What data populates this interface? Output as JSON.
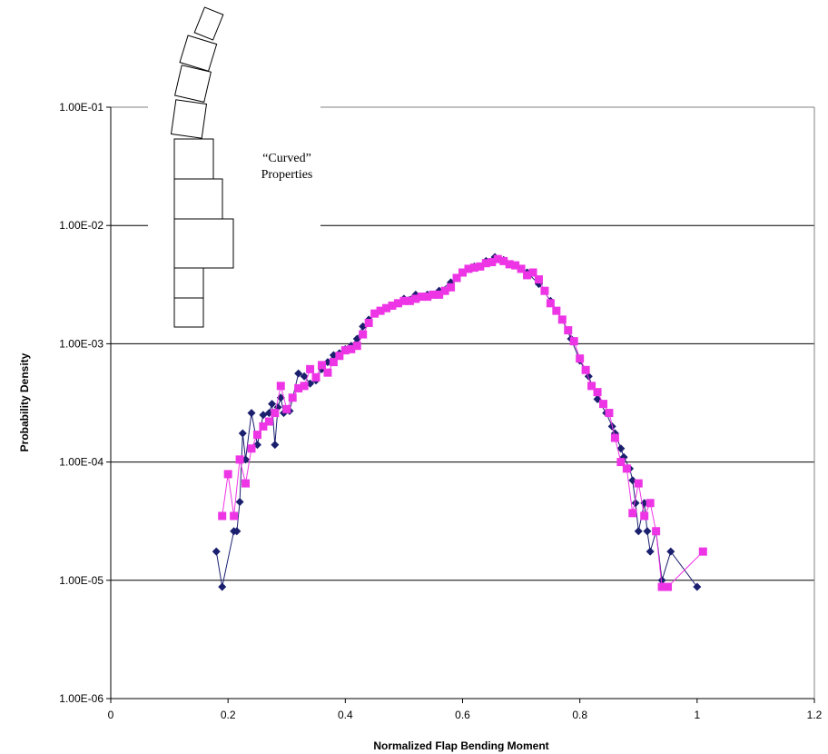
{
  "chart_data": {
    "type": "scatter",
    "title": "",
    "xlabel": "Normalized Flap Bending Moment",
    "ylabel": "Probability Density",
    "xlim": [
      0,
      1.2
    ],
    "ylim": [
      1e-06,
      0.1
    ],
    "yscale": "log",
    "grid": "horizontal major gridlines",
    "legend": "none",
    "x_ticks": [
      "0",
      "0.2",
      "0.4",
      "0.6",
      "0.8",
      "1",
      "1.2"
    ],
    "y_ticks": [
      "1.00E-06",
      "1.00E-05",
      "1.00E-04",
      "1.00E-03",
      "1.00E-02",
      "1.00E-01"
    ],
    "annotation": {
      "line1": "“Curved”",
      "line2": "Properties"
    },
    "series": [
      {
        "color": "#1a1f6e",
        "marker": "diamond",
        "points": [
          [
            0.18,
            1.75e-05
          ],
          [
            0.19,
            8.8e-06
          ],
          [
            0.21,
            2.6e-05
          ],
          [
            0.215,
            2.6e-05
          ],
          [
            0.22,
            4.6e-05
          ],
          [
            0.225,
            0.000175
          ],
          [
            0.23,
            0.000105
          ],
          [
            0.24,
            0.00026
          ],
          [
            0.25,
            0.00014
          ],
          [
            0.26,
            0.00025
          ],
          [
            0.27,
            0.00026
          ],
          [
            0.275,
            0.00031
          ],
          [
            0.28,
            0.00014
          ],
          [
            0.285,
            0.00029
          ],
          [
            0.29,
            0.00035
          ],
          [
            0.295,
            0.00026
          ],
          [
            0.305,
            0.00027
          ],
          [
            0.32,
            0.00056
          ],
          [
            0.33,
            0.00053
          ],
          [
            0.34,
            0.00046
          ],
          [
            0.35,
            0.00049
          ],
          [
            0.36,
            0.00061
          ],
          [
            0.37,
            0.0007
          ],
          [
            0.38,
            0.0008
          ],
          [
            0.39,
            0.00083
          ],
          [
            0.4,
            0.0009
          ],
          [
            0.41,
            0.00096
          ],
          [
            0.42,
            0.0011
          ],
          [
            0.43,
            0.0014
          ],
          [
            0.44,
            0.0016
          ],
          [
            0.46,
            0.0019
          ],
          [
            0.48,
            0.0021
          ],
          [
            0.5,
            0.0024
          ],
          [
            0.52,
            0.0026
          ],
          [
            0.54,
            0.0026
          ],
          [
            0.56,
            0.0028
          ],
          [
            0.58,
            0.0033
          ],
          [
            0.6,
            0.004
          ],
          [
            0.62,
            0.0045
          ],
          [
            0.64,
            0.005
          ],
          [
            0.655,
            0.0054
          ],
          [
            0.67,
            0.0051
          ],
          [
            0.69,
            0.0046
          ],
          [
            0.71,
            0.004
          ],
          [
            0.73,
            0.0032
          ],
          [
            0.75,
            0.0023
          ],
          [
            0.77,
            0.0016
          ],
          [
            0.785,
            0.0011
          ],
          [
            0.8,
            0.00072
          ],
          [
            0.815,
            0.00053
          ],
          [
            0.83,
            0.00034
          ],
          [
            0.845,
            0.00026
          ],
          [
            0.855,
            0.0002
          ],
          [
            0.86,
            0.000175
          ],
          [
            0.87,
            0.00013
          ],
          [
            0.875,
            0.00011
          ],
          [
            0.885,
            8.8e-05
          ],
          [
            0.89,
            7e-05
          ],
          [
            0.895,
            4.5e-05
          ],
          [
            0.9,
            2.6e-05
          ],
          [
            0.91,
            4.5e-05
          ],
          [
            0.915,
            2.6e-05
          ],
          [
            0.92,
            1.75e-05
          ],
          [
            0.93,
            2.6e-05
          ],
          [
            0.94,
            1e-05
          ],
          [
            0.955,
            1.75e-05
          ],
          [
            1.0,
            8.8e-06
          ]
        ]
      },
      {
        "color": "#ee35e6",
        "marker": "square",
        "points": [
          [
            0.19,
            3.5e-05
          ],
          [
            0.2,
            7.9e-05
          ],
          [
            0.21,
            3.5e-05
          ],
          [
            0.22,
            0.000105
          ],
          [
            0.23,
            6.6e-05
          ],
          [
            0.24,
            0.00013
          ],
          [
            0.25,
            0.00017
          ],
          [
            0.26,
            0.0002
          ],
          [
            0.27,
            0.00022
          ],
          [
            0.28,
            0.00026
          ],
          [
            0.29,
            0.00044
          ],
          [
            0.3,
            0.00028
          ],
          [
            0.31,
            0.00035
          ],
          [
            0.32,
            0.00042
          ],
          [
            0.33,
            0.00044
          ],
          [
            0.34,
            0.00061
          ],
          [
            0.35,
            0.00052
          ],
          [
            0.36,
            0.00066
          ],
          [
            0.37,
            0.00057
          ],
          [
            0.38,
            0.0007
          ],
          [
            0.39,
            0.00079
          ],
          [
            0.4,
            0.00088
          ],
          [
            0.41,
            0.0009
          ],
          [
            0.42,
            0.00096
          ],
          [
            0.43,
            0.0012
          ],
          [
            0.44,
            0.0015
          ],
          [
            0.45,
            0.0018
          ],
          [
            0.46,
            0.0019
          ],
          [
            0.47,
            0.002
          ],
          [
            0.48,
            0.0021
          ],
          [
            0.49,
            0.0022
          ],
          [
            0.5,
            0.0023
          ],
          [
            0.51,
            0.0023
          ],
          [
            0.52,
            0.0024
          ],
          [
            0.53,
            0.0025
          ],
          [
            0.54,
            0.0025
          ],
          [
            0.55,
            0.0026
          ],
          [
            0.56,
            0.0026
          ],
          [
            0.57,
            0.0028
          ],
          [
            0.58,
            0.003
          ],
          [
            0.59,
            0.0036
          ],
          [
            0.6,
            0.004
          ],
          [
            0.61,
            0.0043
          ],
          [
            0.62,
            0.0044
          ],
          [
            0.63,
            0.0045
          ],
          [
            0.64,
            0.0048
          ],
          [
            0.65,
            0.0049
          ],
          [
            0.66,
            0.0052
          ],
          [
            0.67,
            0.005
          ],
          [
            0.68,
            0.0047
          ],
          [
            0.69,
            0.0046
          ],
          [
            0.7,
            0.0043
          ],
          [
            0.71,
            0.0038
          ],
          [
            0.72,
            0.004
          ],
          [
            0.73,
            0.0035
          ],
          [
            0.74,
            0.0028
          ],
          [
            0.75,
            0.0022
          ],
          [
            0.76,
            0.0019
          ],
          [
            0.77,
            0.0016
          ],
          [
            0.78,
            0.0013
          ],
          [
            0.79,
            0.00105
          ],
          [
            0.8,
            0.00075
          ],
          [
            0.81,
            0.0006
          ],
          [
            0.82,
            0.00044
          ],
          [
            0.83,
            0.00039
          ],
          [
            0.84,
            0.00031
          ],
          [
            0.85,
            0.00026
          ],
          [
            0.86,
            0.00016
          ],
          [
            0.87,
            0.0001
          ],
          [
            0.88,
            8.8e-05
          ],
          [
            0.89,
            3.7e-05
          ],
          [
            0.9,
            6.6e-05
          ],
          [
            0.91,
            3.5e-05
          ],
          [
            0.92,
            4.5e-05
          ],
          [
            0.93,
            2.6e-05
          ],
          [
            0.94,
            8.8e-06
          ],
          [
            0.95,
            8.8e-06
          ],
          [
            1.01,
            1.75e-05
          ]
        ]
      }
    ]
  }
}
